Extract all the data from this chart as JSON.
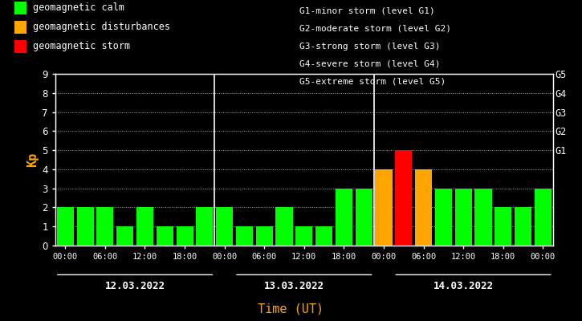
{
  "bg_color": "#000000",
  "bar_data_kp": [
    2,
    2,
    2,
    1,
    2,
    1,
    1,
    2,
    2,
    1,
    1,
    2,
    1,
    1,
    3,
    3,
    4,
    5,
    4,
    3,
    3,
    3,
    2,
    2,
    3
  ],
  "bar_data_color": [
    "#00ff00",
    "#00ff00",
    "#00ff00",
    "#00ff00",
    "#00ff00",
    "#00ff00",
    "#00ff00",
    "#00ff00",
    "#00ff00",
    "#00ff00",
    "#00ff00",
    "#00ff00",
    "#00ff00",
    "#00ff00",
    "#00ff00",
    "#00ff00",
    "#ffa500",
    "#ff0000",
    "#ffa500",
    "#00ff00",
    "#00ff00",
    "#00ff00",
    "#00ff00",
    "#00ff00",
    "#00ff00"
  ],
  "ylim": [
    0,
    9
  ],
  "yticks": [
    0,
    1,
    2,
    3,
    4,
    5,
    6,
    7,
    8,
    9
  ],
  "ylabel": "Kp",
  "ylabel_color": "#ffa500",
  "xlabel": "Time (UT)",
  "xlabel_color": "#ffa500",
  "tick_color": "#ffffff",
  "day_labels": [
    "12.03.2022",
    "13.03.2022",
    "14.03.2022"
  ],
  "right_tick_labels": [
    "G1",
    "G2",
    "G3",
    "G4",
    "G5"
  ],
  "right_tick_positions": [
    5,
    6,
    7,
    8,
    9
  ],
  "time_tick_labels": [
    "00:00",
    "06:00",
    "12:00",
    "18:00",
    "00:00",
    "06:00",
    "12:00",
    "18:00",
    "00:00",
    "06:00",
    "12:00",
    "18:00",
    "00:00"
  ],
  "time_tick_positions": [
    0,
    2,
    4,
    6,
    8,
    10,
    12,
    14,
    16,
    18,
    20,
    22,
    24
  ],
  "legend_items": [
    {
      "label": "geomagnetic calm",
      "color": "#00ff00"
    },
    {
      "label": "geomagnetic disturbances",
      "color": "#ffa500"
    },
    {
      "label": "geomagnetic storm",
      "color": "#ff0000"
    }
  ],
  "right_legend": [
    "G1-minor storm (level G1)",
    "G2-moderate storm (level G2)",
    "G3-strong storm (level G3)",
    "G4-severe storm (level G4)",
    "G5-extreme storm (level G5)"
  ],
  "bar_width": 0.85
}
